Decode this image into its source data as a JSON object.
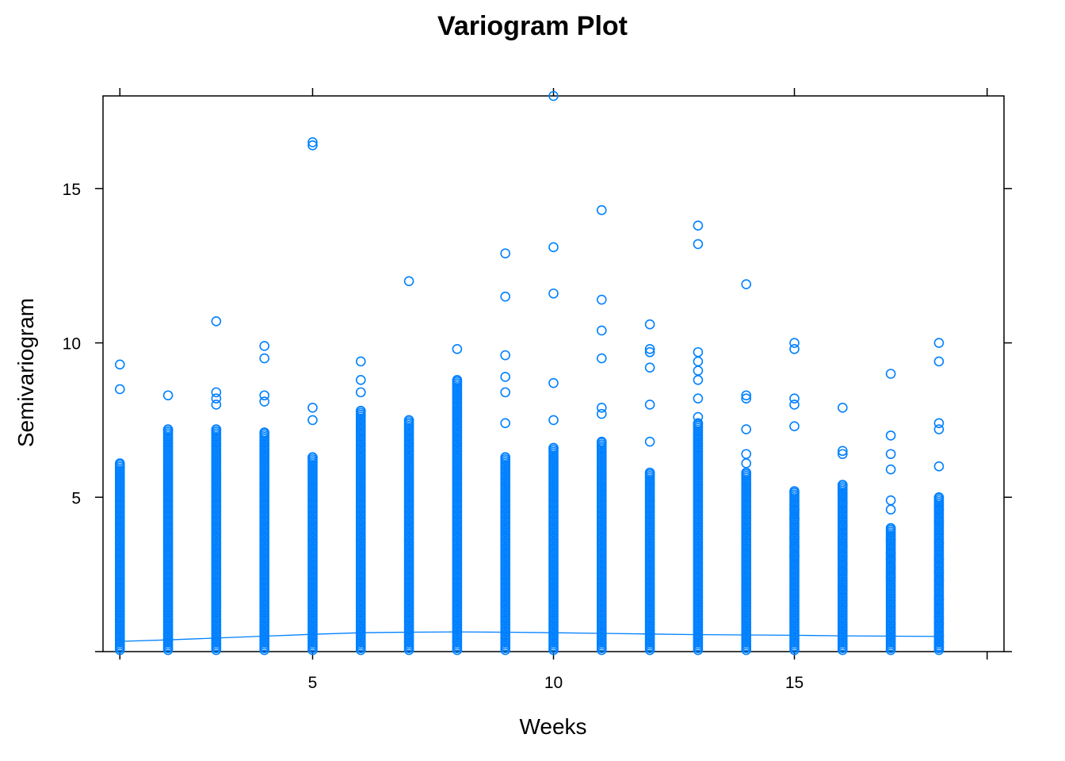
{
  "chart_data": {
    "type": "scatter",
    "title": "Variogram Plot",
    "xlabel": "Weeks",
    "ylabel": "Semivariogram",
    "xlim": [
      0.65,
      19.35
    ],
    "ylim": [
      0,
      18
    ],
    "x_ticks": [
      5,
      10,
      15
    ],
    "y_ticks": [
      5,
      10,
      15
    ],
    "grid": false,
    "legend": "none",
    "colors": {
      "points": "#0080ff",
      "line": "#0080ff",
      "axes": "#000000"
    },
    "dense_columns": [
      {
        "x": 1,
        "ymax": 6.1
      },
      {
        "x": 2,
        "ymax": 7.2
      },
      {
        "x": 3,
        "ymax": 7.2
      },
      {
        "x": 4,
        "ymax": 7.1
      },
      {
        "x": 5,
        "ymax": 6.3
      },
      {
        "x": 6,
        "ymax": 7.8
      },
      {
        "x": 7,
        "ymax": 7.5
      },
      {
        "x": 8,
        "ymax": 8.8
      },
      {
        "x": 9,
        "ymax": 6.3
      },
      {
        "x": 10,
        "ymax": 6.6
      },
      {
        "x": 11,
        "ymax": 6.8
      },
      {
        "x": 12,
        "ymax": 5.8
      },
      {
        "x": 13,
        "ymax": 7.4
      },
      {
        "x": 14,
        "ymax": 5.8
      },
      {
        "x": 15,
        "ymax": 5.2
      },
      {
        "x": 16,
        "ymax": 5.4
      },
      {
        "x": 17,
        "ymax": 4.0
      },
      {
        "x": 18,
        "ymax": 5.0
      }
    ],
    "sparse_points": [
      {
        "x": 1,
        "y": 9.3
      },
      {
        "x": 1,
        "y": 8.5
      },
      {
        "x": 2,
        "y": 8.3
      },
      {
        "x": 3,
        "y": 10.7
      },
      {
        "x": 3,
        "y": 8.4
      },
      {
        "x": 3,
        "y": 8.2
      },
      {
        "x": 3,
        "y": 8.0
      },
      {
        "x": 4,
        "y": 9.9
      },
      {
        "x": 4,
        "y": 9.5
      },
      {
        "x": 4,
        "y": 8.3
      },
      {
        "x": 4,
        "y": 8.1
      },
      {
        "x": 5,
        "y": 16.5
      },
      {
        "x": 5,
        "y": 16.4
      },
      {
        "x": 5,
        "y": 7.9
      },
      {
        "x": 5,
        "y": 7.5
      },
      {
        "x": 6,
        "y": 9.4
      },
      {
        "x": 6,
        "y": 8.8
      },
      {
        "x": 6,
        "y": 8.4
      },
      {
        "x": 7,
        "y": 12.0
      },
      {
        "x": 8,
        "y": 9.8
      },
      {
        "x": 9,
        "y": 12.9
      },
      {
        "x": 9,
        "y": 11.5
      },
      {
        "x": 9,
        "y": 9.6
      },
      {
        "x": 9,
        "y": 8.9
      },
      {
        "x": 9,
        "y": 8.4
      },
      {
        "x": 9,
        "y": 7.4
      },
      {
        "x": 10,
        "y": 18.0
      },
      {
        "x": 10,
        "y": 13.1
      },
      {
        "x": 10,
        "y": 11.6
      },
      {
        "x": 10,
        "y": 8.7
      },
      {
        "x": 10,
        "y": 7.5
      },
      {
        "x": 11,
        "y": 14.3
      },
      {
        "x": 11,
        "y": 11.4
      },
      {
        "x": 11,
        "y": 10.4
      },
      {
        "x": 11,
        "y": 9.5
      },
      {
        "x": 11,
        "y": 7.9
      },
      {
        "x": 11,
        "y": 7.7
      },
      {
        "x": 12,
        "y": 10.6
      },
      {
        "x": 12,
        "y": 9.8
      },
      {
        "x": 12,
        "y": 9.7
      },
      {
        "x": 12,
        "y": 9.2
      },
      {
        "x": 12,
        "y": 8.0
      },
      {
        "x": 12,
        "y": 6.8
      },
      {
        "x": 13,
        "y": 13.8
      },
      {
        "x": 13,
        "y": 13.2
      },
      {
        "x": 13,
        "y": 9.7
      },
      {
        "x": 13,
        "y": 9.4
      },
      {
        "x": 13,
        "y": 9.1
      },
      {
        "x": 13,
        "y": 8.8
      },
      {
        "x": 13,
        "y": 8.2
      },
      {
        "x": 13,
        "y": 7.6
      },
      {
        "x": 14,
        "y": 11.9
      },
      {
        "x": 14,
        "y": 8.3
      },
      {
        "x": 14,
        "y": 8.2
      },
      {
        "x": 14,
        "y": 7.2
      },
      {
        "x": 14,
        "y": 6.4
      },
      {
        "x": 14,
        "y": 6.1
      },
      {
        "x": 15,
        "y": 10.0
      },
      {
        "x": 15,
        "y": 9.8
      },
      {
        "x": 15,
        "y": 8.2
      },
      {
        "x": 15,
        "y": 8.0
      },
      {
        "x": 15,
        "y": 7.3
      },
      {
        "x": 15,
        "y": 4.6
      },
      {
        "x": 15,
        "y": 4.3
      },
      {
        "x": 15,
        "y": 3.7
      },
      {
        "x": 15,
        "y": 3.4
      },
      {
        "x": 15,
        "y": 3.1
      },
      {
        "x": 16,
        "y": 7.9
      },
      {
        "x": 16,
        "y": 6.5
      },
      {
        "x": 16,
        "y": 6.4
      },
      {
        "x": 16,
        "y": 5.4
      },
      {
        "x": 16,
        "y": 5.1
      },
      {
        "x": 16,
        "y": 4.8
      },
      {
        "x": 16,
        "y": 4.1
      },
      {
        "x": 16,
        "y": 3.7
      },
      {
        "x": 16,
        "y": 3.4
      },
      {
        "x": 16,
        "y": 3.1
      },
      {
        "x": 16,
        "y": 2.8
      },
      {
        "x": 16,
        "y": 2.6
      },
      {
        "x": 16,
        "y": 2.2
      },
      {
        "x": 16,
        "y": 2.0
      },
      {
        "x": 17,
        "y": 9.0
      },
      {
        "x": 17,
        "y": 7.0
      },
      {
        "x": 17,
        "y": 6.4
      },
      {
        "x": 17,
        "y": 5.9
      },
      {
        "x": 17,
        "y": 4.9
      },
      {
        "x": 17,
        "y": 4.6
      },
      {
        "x": 17,
        "y": 3.6
      },
      {
        "x": 17,
        "y": 3.2
      },
      {
        "x": 17,
        "y": 3.0
      },
      {
        "x": 17,
        "y": 2.7
      },
      {
        "x": 17,
        "y": 2.4
      },
      {
        "x": 18,
        "y": 10.0
      },
      {
        "x": 18,
        "y": 9.4
      },
      {
        "x": 18,
        "y": 7.4
      },
      {
        "x": 18,
        "y": 7.2
      },
      {
        "x": 18,
        "y": 6.0
      },
      {
        "x": 18,
        "y": 4.6
      },
      {
        "x": 18,
        "y": 4.2
      },
      {
        "x": 18,
        "y": 3.5
      },
      {
        "x": 18,
        "y": 3.0
      },
      {
        "x": 18,
        "y": 2.8
      },
      {
        "x": 18,
        "y": 2.6
      },
      {
        "x": 18,
        "y": 2.3
      },
      {
        "x": 18,
        "y": 1.7
      },
      {
        "x": 18,
        "y": 1.4
      },
      {
        "x": 18,
        "y": 1.1
      },
      {
        "x": 18,
        "y": 0.9
      },
      {
        "x": 18,
        "y": 0.5
      },
      {
        "x": 18,
        "y": 0.3
      },
      {
        "x": 18,
        "y": 0.15
      }
    ],
    "smooth_line": {
      "x": [
        1,
        2,
        3,
        4,
        5,
        6,
        7,
        8,
        9,
        10,
        11,
        12,
        13,
        14,
        15,
        16,
        17,
        18
      ],
      "y": [
        0.33,
        0.38,
        0.44,
        0.5,
        0.56,
        0.61,
        0.63,
        0.64,
        0.63,
        0.61,
        0.59,
        0.57,
        0.55,
        0.54,
        0.53,
        0.51,
        0.5,
        0.49
      ]
    }
  }
}
